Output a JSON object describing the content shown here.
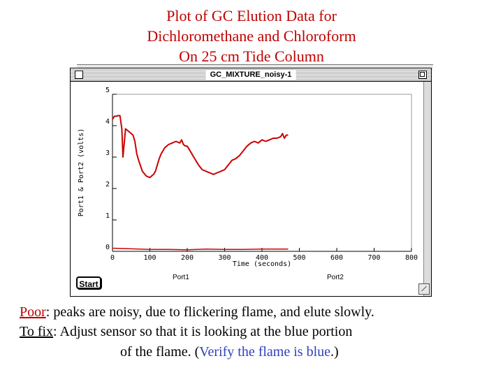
{
  "slide": {
    "title_line1": "Plot of GC Elution Data for",
    "title_line2": "Dichloromethane and Chloroform",
    "title_line3": "On 25 cm Tide Column"
  },
  "window": {
    "title": "GC_MIXTURE_noisy-1",
    "start_button": "Start",
    "port1_label": "Port1",
    "port2_label": "Port2"
  },
  "colors": {
    "title": "#c00000",
    "trace": "#cc0000",
    "blue_text": "#3040c0"
  },
  "chart_data": {
    "type": "line",
    "xlabel": "Time (seconds)",
    "ylabel": "Port1 & Port2 (volts)",
    "xlim": [
      0,
      800
    ],
    "ylim": [
      0,
      5
    ],
    "x_ticks": [
      "0",
      "100",
      "200",
      "300",
      "400",
      "500",
      "600",
      "700",
      "800"
    ],
    "y_ticks": [
      "0",
      "1",
      "2",
      "3",
      "4",
      "5"
    ],
    "grid": false,
    "series": [
      {
        "name": "Port1",
        "x": [
          0,
          5,
          10,
          15,
          20,
          25,
          28,
          35,
          45,
          55,
          60,
          65,
          70,
          80,
          90,
          100,
          110,
          115,
          120,
          125,
          130,
          140,
          150,
          160,
          170,
          180,
          185,
          190,
          195,
          200,
          210,
          220,
          230,
          240,
          250,
          260,
          270,
          280,
          290,
          300,
          310,
          320,
          330,
          340,
          350,
          360,
          370,
          380,
          390,
          400,
          410,
          420,
          430,
          440,
          450,
          455,
          460,
          465,
          470
        ],
        "y": [
          4.2,
          4.3,
          4.3,
          4.32,
          4.32,
          3.9,
          3.0,
          3.9,
          3.8,
          3.7,
          3.5,
          3.1,
          2.9,
          2.55,
          2.4,
          2.35,
          2.45,
          2.55,
          2.75,
          2.95,
          3.1,
          3.3,
          3.4,
          3.45,
          3.5,
          3.45,
          3.55,
          3.4,
          3.35,
          3.35,
          3.15,
          2.95,
          2.75,
          2.6,
          2.55,
          2.5,
          2.45,
          2.5,
          2.55,
          2.6,
          2.75,
          2.9,
          2.95,
          3.05,
          3.2,
          3.35,
          3.45,
          3.5,
          3.45,
          3.55,
          3.5,
          3.55,
          3.6,
          3.6,
          3.65,
          3.75,
          3.6,
          3.7,
          3.7
        ]
      },
      {
        "name": "Port2",
        "x": [
          0,
          50,
          100,
          150,
          200,
          250,
          300,
          350,
          400,
          450,
          470
        ],
        "y": [
          0.1,
          0.08,
          0.06,
          0.06,
          0.05,
          0.07,
          0.06,
          0.06,
          0.07,
          0.07,
          0.07
        ]
      }
    ]
  },
  "caption": {
    "poor_label": "Poor",
    "poor_text": ": peaks are noisy, due to flickering flame, and elute slowly.",
    "fix_label": "To fix",
    "fix_text": ": Adjust sensor so that it is looking at the blue portion",
    "line3_pre": "of the flame. (",
    "line3_blue": "Verify the flame is blue",
    "line3_post": ".)"
  }
}
